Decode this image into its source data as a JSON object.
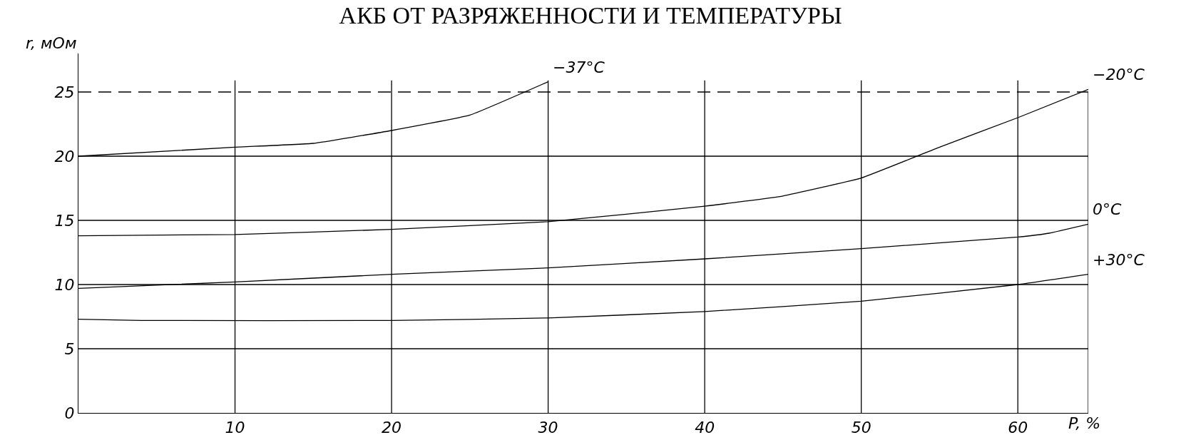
{
  "chart_data": {
    "type": "line",
    "title": "АКБ ОТ РАЗРЯЖЕННОСТИ И ТЕМПЕРАТУРЫ",
    "xlabel": "P, %",
    "ylabel": "r, мОм",
    "xlim": [
      0,
      64.5
    ],
    "ylim": [
      0,
      28
    ],
    "xticks": [
      10,
      20,
      30,
      40,
      50,
      60
    ],
    "yticks": [
      0,
      5,
      10,
      15,
      20,
      25
    ],
    "grid": true,
    "legend": false,
    "marker": "none",
    "line_style": "solid",
    "ref_lines": [
      {
        "axis": "y",
        "value": 25,
        "line_style": "dashed",
        "color": "#000000"
      }
    ],
    "series": [
      {
        "name": "−37°C",
        "color": "#000000",
        "x": [
          0,
          10,
          15,
          20,
          25,
          30
        ],
        "values": [
          20,
          20.7,
          21,
          22,
          23.2,
          25.8
        ]
      },
      {
        "name": "−20°C",
        "color": "#000000",
        "x": [
          0,
          10,
          20,
          30,
          40,
          45,
          50,
          55,
          60,
          64.5
        ],
        "values": [
          13.8,
          13.9,
          14.3,
          14.9,
          16.1,
          16.9,
          18.3,
          20.7,
          23,
          25.2
        ]
      },
      {
        "name": "0°C",
        "color": "#000000",
        "x": [
          0,
          10,
          20,
          30,
          40,
          50,
          60,
          62,
          64.5
        ],
        "values": [
          9.7,
          10.2,
          10.8,
          11.3,
          12,
          12.8,
          13.7,
          14,
          14.7
        ]
      },
      {
        "name": "+30°C",
        "color": "#000000",
        "x": [
          0,
          4,
          20,
          30,
          40,
          50,
          60,
          64.5
        ],
        "values": [
          7.3,
          7.2,
          7.2,
          7.4,
          7.9,
          8.7,
          10,
          10.8
        ]
      }
    ]
  }
}
